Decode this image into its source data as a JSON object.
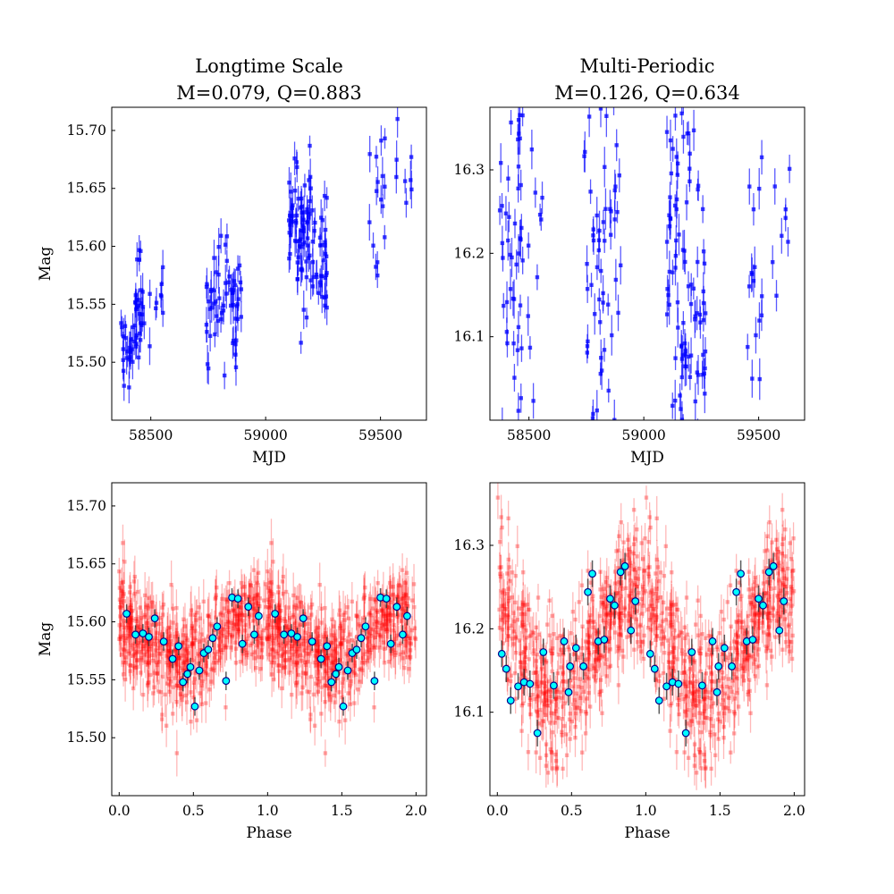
{
  "colors": {
    "lightcurve": "#0000ff",
    "folded": "#ff0000",
    "binned_fill": "#00ffff",
    "binned_edge": "#00008b",
    "binned_err": "#333333"
  },
  "chart_data": [
    {
      "type": "scatter",
      "title": [
        "Longtime Scale",
        "M=0.079, Q=0.883"
      ],
      "xlabel": "MJD",
      "ylabel": "Mag",
      "xlim": [
        58330,
        59700
      ],
      "ylim": [
        15.72,
        15.45
      ],
      "xticks": [
        58500,
        59000,
        59500
      ],
      "xtick_labels": [
        "58500",
        "59000",
        "59500"
      ],
      "yticks": [
        15.5,
        15.55,
        15.6,
        15.65,
        15.7
      ],
      "ytick_labels": [
        "15.50",
        "15.55",
        "15.60",
        "15.65",
        "15.70"
      ],
      "series": [
        {
          "name": "light curve",
          "style": "blue-errorbar",
          "seasons": [
            {
              "x_range": [
                58370,
                58430
              ],
              "y_mean": 15.515,
              "y_spread": 0.03,
              "n": 22,
              "err": 0.012
            },
            {
              "x_range": [
                58430,
                58470
              ],
              "y_mean": 15.54,
              "y_spread": 0.06,
              "n": 28,
              "err": 0.012
            },
            {
              "x_range": [
                58470,
                58560
              ],
              "y_mean": 15.56,
              "y_spread": 0.08,
              "n": 10,
              "err": 0.012
            },
            {
              "x_range": [
                58740,
                58900
              ],
              "y_mean": 15.555,
              "y_spread": 0.06,
              "n": 60,
              "err": 0.012
            },
            {
              "x_range": [
                59100,
                59200
              ],
              "y_mean": 15.61,
              "y_spread": 0.08,
              "n": 70,
              "err": 0.012
            },
            {
              "x_range": [
                59200,
                59270
              ],
              "y_mean": 15.59,
              "y_spread": 0.06,
              "n": 35,
              "err": 0.012
            },
            {
              "x_range": [
                59450,
                59520
              ],
              "y_mean": 15.63,
              "y_spread": 0.07,
              "n": 16,
              "err": 0.012
            },
            {
              "x_range": [
                59560,
                59640
              ],
              "y_mean": 15.66,
              "y_spread": 0.05,
              "n": 8,
              "err": 0.012
            }
          ]
        }
      ]
    },
    {
      "type": "scatter",
      "title": [
        "Multi-Periodic",
        "M=0.126, Q=0.634"
      ],
      "xlabel": "MJD",
      "ylabel": "",
      "xlim": [
        58330,
        59700
      ],
      "ylim": [
        16.375,
        16.0
      ],
      "xticks": [
        58500,
        59000,
        59500
      ],
      "xtick_labels": [
        "58500",
        "59000",
        "59500"
      ],
      "yticks": [
        16.1,
        16.2,
        16.3
      ],
      "ytick_labels": [
        "16.1",
        "16.2",
        "16.3"
      ],
      "series": [
        {
          "name": "light curve",
          "style": "blue-errorbar",
          "seasons": [
            {
              "x_range": [
                58370,
                58430
              ],
              "y_mean": 16.23,
              "y_spread": 0.2,
              "n": 20,
              "err": 0.018
            },
            {
              "x_range": [
                58430,
                58470
              ],
              "y_mean": 16.22,
              "y_spread": 0.25,
              "n": 28,
              "err": 0.018
            },
            {
              "x_range": [
                58470,
                58560
              ],
              "y_mean": 16.2,
              "y_spread": 0.2,
              "n": 12,
              "err": 0.018
            },
            {
              "x_range": [
                58740,
                58900
              ],
              "y_mean": 16.18,
              "y_spread": 0.26,
              "n": 60,
              "err": 0.018
            },
            {
              "x_range": [
                59100,
                59200
              ],
              "y_mean": 16.18,
              "y_spread": 0.26,
              "n": 70,
              "err": 0.018
            },
            {
              "x_range": [
                59200,
                59270
              ],
              "y_mean": 16.14,
              "y_spread": 0.2,
              "n": 35,
              "err": 0.018
            },
            {
              "x_range": [
                59450,
                59520
              ],
              "y_mean": 16.16,
              "y_spread": 0.18,
              "n": 16,
              "err": 0.018
            },
            {
              "x_range": [
                59560,
                59640
              ],
              "y_mean": 16.22,
              "y_spread": 0.15,
              "n": 8,
              "err": 0.018
            }
          ]
        }
      ]
    },
    {
      "type": "scatter",
      "title": [],
      "xlabel": "Phase",
      "ylabel": "Mag",
      "xlim": [
        -0.05,
        2.07
      ],
      "ylim": [
        15.72,
        15.45
      ],
      "xticks": [
        0.0,
        0.5,
        1.0,
        1.5,
        2.0
      ],
      "xtick_labels": [
        "0.0",
        "0.5",
        "1.0",
        "1.5",
        "2.0"
      ],
      "yticks": [
        15.5,
        15.55,
        15.6,
        15.65,
        15.7
      ],
      "ytick_labels": [
        "15.50",
        "15.55",
        "15.60",
        "15.65",
        "15.70"
      ],
      "series": [
        {
          "name": "folded",
          "style": "red-errorbar",
          "n": 520,
          "y_mean": 15.585,
          "y_spread": 0.045,
          "amp": 0.02,
          "err": 0.014
        },
        {
          "name": "binned",
          "style": "cyan-circle",
          "phase": [
            0.05,
            0.11,
            0.16,
            0.2,
            0.24,
            0.3,
            0.36,
            0.4,
            0.43,
            0.46,
            0.48,
            0.51,
            0.54,
            0.57,
            0.6,
            0.63,
            0.66,
            0.72,
            0.76,
            0.8,
            0.83,
            0.87,
            0.91,
            0.94
          ],
          "mag": [
            15.607,
            15.589,
            15.59,
            15.587,
            15.603,
            15.583,
            15.568,
            15.579,
            15.548,
            15.555,
            15.561,
            15.527,
            15.558,
            15.573,
            15.576,
            15.586,
            15.596,
            15.549,
            15.621,
            15.62,
            15.581,
            15.613,
            15.589,
            15.605
          ],
          "err": 0.008
        }
      ]
    },
    {
      "type": "scatter",
      "title": [],
      "xlabel": "Phase",
      "ylabel": "",
      "xlim": [
        -0.05,
        2.07
      ],
      "ylim": [
        16.375,
        16.0
      ],
      "xticks": [
        0.0,
        0.5,
        1.0,
        1.5,
        2.0
      ],
      "xtick_labels": [
        "0.0",
        "0.5",
        "1.0",
        "1.5",
        "2.0"
      ],
      "yticks": [
        16.1,
        16.2,
        16.3
      ],
      "ytick_labels": [
        "16.1",
        "16.2",
        "16.3"
      ],
      "series": [
        {
          "name": "folded",
          "style": "red-errorbar",
          "n": 520,
          "y_mean": 16.18,
          "y_spread": 0.09,
          "amp": 0.07,
          "err": 0.018
        },
        {
          "name": "binned",
          "style": "cyan-circle",
          "phase": [
            0.03,
            0.06,
            0.09,
            0.14,
            0.18,
            0.22,
            0.27,
            0.31,
            0.38,
            0.45,
            0.48,
            0.49,
            0.53,
            0.58,
            0.61,
            0.64,
            0.68,
            0.72,
            0.76,
            0.79,
            0.83,
            0.86,
            0.9,
            0.93
          ],
          "mag": [
            16.17,
            16.152,
            16.114,
            16.131,
            16.136,
            16.134,
            16.075,
            16.172,
            16.132,
            16.185,
            16.124,
            16.155,
            16.177,
            16.155,
            16.244,
            16.266,
            16.185,
            16.187,
            16.236,
            16.228,
            16.268,
            16.275,
            16.198,
            16.233
          ],
          "err": 0.016
        }
      ]
    }
  ]
}
